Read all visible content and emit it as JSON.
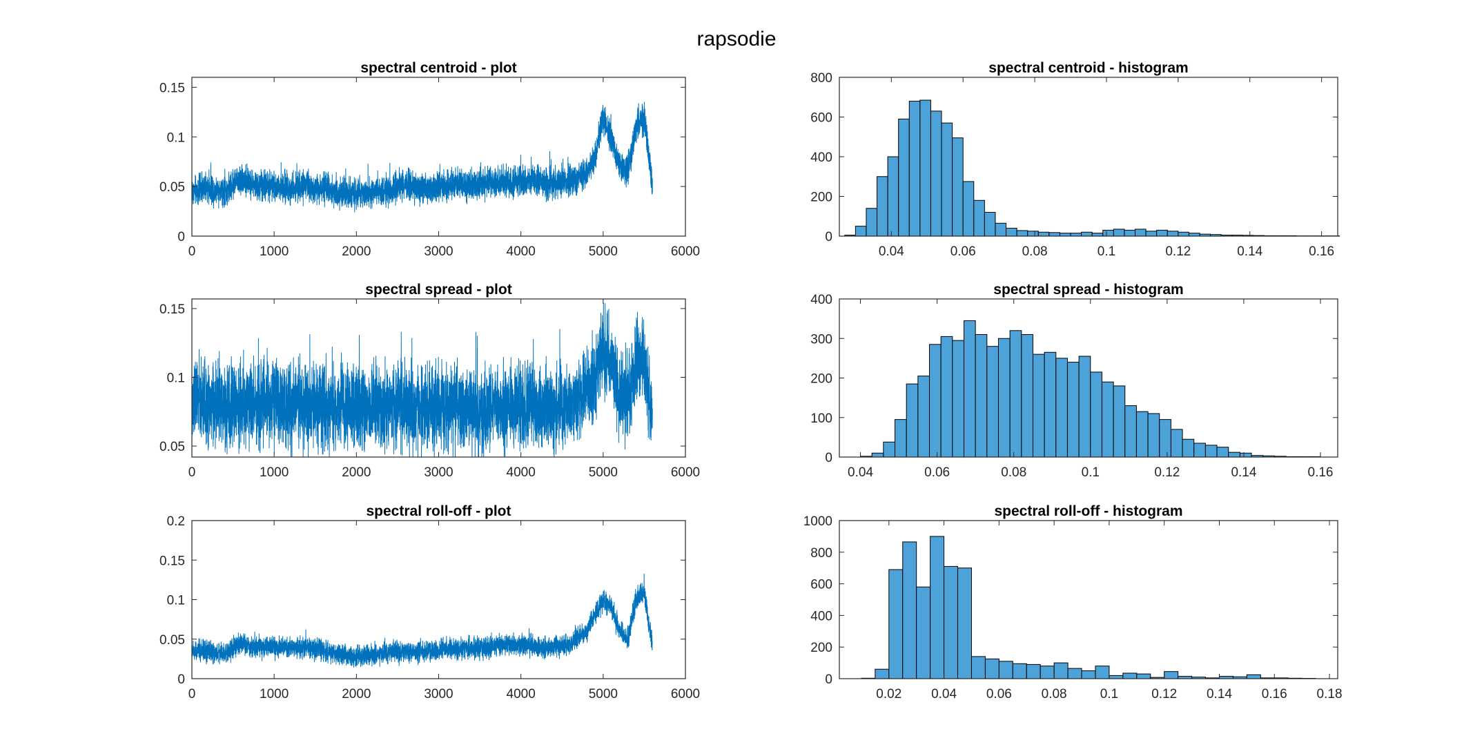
{
  "figure": {
    "title": "rapsodie"
  },
  "colors": {
    "line": "#0072BD",
    "bar_fill": "#4DA3D9",
    "bar_edge": "#000000",
    "axes": "#262626"
  },
  "chart_data": [
    {
      "type": "line",
      "title": "spectral centroid - plot",
      "xlabel": "",
      "ylabel": "",
      "xlim": [
        0,
        6000
      ],
      "ylim": [
        0,
        0.16
      ],
      "xticks": [
        0,
        1000,
        2000,
        3000,
        4000,
        5000,
        6000
      ],
      "xticklabels": [
        "0",
        "1000",
        "2000",
        "3000",
        "4000",
        "5000",
        "6000"
      ],
      "yticks": [
        0,
        0.05,
        0.1,
        0.15
      ],
      "yticklabels": [
        "0",
        "0.05",
        "0.1",
        "0.15"
      ],
      "n_points": 5600,
      "x": [
        0,
        200,
        400,
        600,
        800,
        1000,
        1200,
        1400,
        1600,
        1800,
        2000,
        2200,
        2400,
        2600,
        2800,
        3000,
        3200,
        3400,
        3600,
        3800,
        4000,
        4200,
        4400,
        4600,
        4800,
        4900,
        5000,
        5100,
        5200,
        5300,
        5400,
        5500,
        5600
      ],
      "y": [
        0.045,
        0.048,
        0.045,
        0.058,
        0.05,
        0.05,
        0.048,
        0.05,
        0.048,
        0.044,
        0.042,
        0.043,
        0.047,
        0.05,
        0.048,
        0.05,
        0.052,
        0.05,
        0.053,
        0.055,
        0.055,
        0.054,
        0.053,
        0.055,
        0.065,
        0.08,
        0.12,
        0.1,
        0.07,
        0.065,
        0.11,
        0.12,
        0.048
      ],
      "noise": 0.009
    },
    {
      "type": "line",
      "title": "spectral spread - plot",
      "xlabel": "",
      "ylabel": "",
      "xlim": [
        0,
        6000
      ],
      "ylim": [
        0.042,
        0.157
      ],
      "xticks": [
        0,
        1000,
        2000,
        3000,
        4000,
        5000,
        6000
      ],
      "xticklabels": [
        "0",
        "1000",
        "2000",
        "3000",
        "4000",
        "5000",
        "6000"
      ],
      "yticks": [
        0.05,
        0.1,
        0.15
      ],
      "yticklabels": [
        "0.05",
        "0.1",
        "0.15"
      ],
      "n_points": 5600,
      "x": [
        0,
        200,
        400,
        600,
        800,
        1000,
        1200,
        1400,
        1600,
        1800,
        2000,
        2200,
        2400,
        2600,
        2800,
        3000,
        3200,
        3400,
        3600,
        3800,
        4000,
        4200,
        4400,
        4600,
        4800,
        4900,
        5000,
        5100,
        5200,
        5300,
        5400,
        5500,
        5600
      ],
      "y": [
        0.085,
        0.08,
        0.078,
        0.08,
        0.08,
        0.082,
        0.08,
        0.078,
        0.08,
        0.078,
        0.077,
        0.078,
        0.078,
        0.078,
        0.077,
        0.078,
        0.077,
        0.076,
        0.077,
        0.077,
        0.078,
        0.078,
        0.078,
        0.08,
        0.09,
        0.1,
        0.12,
        0.11,
        0.09,
        0.085,
        0.11,
        0.115,
        0.06
      ],
      "noise": 0.018
    },
    {
      "type": "line",
      "title": "spectral roll-off - plot",
      "xlabel": "",
      "ylabel": "",
      "xlim": [
        0,
        6000
      ],
      "ylim": [
        0,
        0.2
      ],
      "xticks": [
        0,
        1000,
        2000,
        3000,
        4000,
        5000,
        6000
      ],
      "xticklabels": [
        "0",
        "1000",
        "2000",
        "3000",
        "4000",
        "5000",
        "6000"
      ],
      "yticks": [
        0,
        0.05,
        0.1,
        0.15,
        0.2
      ],
      "yticklabels": [
        "0",
        "0.05",
        "0.1",
        "0.15",
        "0.2"
      ],
      "n_points": 5600,
      "x": [
        0,
        200,
        400,
        600,
        800,
        1000,
        1200,
        1400,
        1600,
        1800,
        2000,
        2200,
        2400,
        2600,
        2800,
        3000,
        3200,
        3400,
        3600,
        3800,
        4000,
        4200,
        4400,
        4600,
        4800,
        4900,
        5000,
        5100,
        5200,
        5300,
        5400,
        5500,
        5600
      ],
      "y": [
        0.035,
        0.035,
        0.032,
        0.045,
        0.038,
        0.04,
        0.038,
        0.04,
        0.036,
        0.03,
        0.028,
        0.03,
        0.033,
        0.035,
        0.034,
        0.036,
        0.038,
        0.037,
        0.04,
        0.042,
        0.042,
        0.04,
        0.04,
        0.045,
        0.06,
        0.08,
        0.1,
        0.09,
        0.06,
        0.05,
        0.1,
        0.11,
        0.04
      ],
      "noise": 0.008
    },
    {
      "type": "bar",
      "subtype": "histogram",
      "title": "spectral centroid - histogram",
      "xlabel": "",
      "ylabel": "",
      "xlim": [
        0.0255,
        0.1645
      ],
      "ylim": [
        0,
        800
      ],
      "xticks": [
        0.04,
        0.06,
        0.08,
        0.1,
        0.12,
        0.14,
        0.16
      ],
      "xticklabels": [
        "0.04",
        "0.06",
        "0.08",
        "0.1",
        "0.12",
        "0.14",
        "0.16"
      ],
      "yticks": [
        0,
        200,
        400,
        600,
        800
      ],
      "yticklabels": [
        "0",
        "200",
        "400",
        "600",
        "800"
      ],
      "bin_start": 0.027,
      "bin_width": 0.003,
      "values": [
        5,
        50,
        140,
        300,
        400,
        590,
        680,
        685,
        630,
        570,
        495,
        275,
        180,
        120,
        65,
        40,
        28,
        25,
        20,
        18,
        15,
        15,
        20,
        15,
        30,
        35,
        30,
        35,
        25,
        30,
        25,
        20,
        15,
        10,
        8,
        5,
        5,
        4,
        3,
        2,
        2,
        2,
        1,
        1,
        1,
        1
      ]
    },
    {
      "type": "bar",
      "subtype": "histogram",
      "title": "spectral spread - histogram",
      "xlabel": "",
      "ylabel": "",
      "xlim": [
        0.0345,
        0.1645
      ],
      "ylim": [
        0,
        400
      ],
      "xticks": [
        0.04,
        0.06,
        0.08,
        0.1,
        0.12,
        0.14,
        0.16
      ],
      "xticklabels": [
        "0.04",
        "0.06",
        "0.08",
        "0.1",
        "0.12",
        "0.14",
        "0.16"
      ],
      "yticks": [
        0,
        100,
        200,
        300,
        400
      ],
      "yticklabels": [
        "0",
        "100",
        "200",
        "300",
        "400"
      ],
      "bin_start": 0.04,
      "bin_width": 0.003,
      "values": [
        2,
        10,
        38,
        95,
        185,
        205,
        285,
        305,
        295,
        345,
        310,
        280,
        300,
        320,
        310,
        260,
        265,
        250,
        240,
        255,
        215,
        190,
        180,
        130,
        115,
        110,
        95,
        70,
        45,
        35,
        30,
        25,
        12,
        10,
        4,
        3,
        2,
        1,
        1,
        1
      ]
    },
    {
      "type": "bar",
      "subtype": "histogram",
      "title": "spectral roll-off - histogram",
      "xlabel": "",
      "ylabel": "",
      "xlim": [
        0.002,
        0.183
      ],
      "ylim": [
        0,
        1000
      ],
      "xticks": [
        0.02,
        0.04,
        0.06,
        0.08,
        0.1,
        0.12,
        0.14,
        0.16,
        0.18
      ],
      "xticklabels": [
        "0.02",
        "0.04",
        "0.06",
        "0.08",
        "0.1",
        "0.12",
        "0.14",
        "0.16",
        "0.18"
      ],
      "yticks": [
        0,
        200,
        400,
        600,
        800,
        1000
      ],
      "yticklabels": [
        "0",
        "200",
        "400",
        "600",
        "800",
        "1000"
      ],
      "bin_start": 0.01,
      "bin_width": 0.005,
      "values": [
        3,
        60,
        690,
        865,
        580,
        900,
        710,
        700,
        140,
        125,
        110,
        95,
        90,
        80,
        100,
        65,
        50,
        80,
        20,
        35,
        30,
        8,
        45,
        15,
        10,
        5,
        15,
        12,
        25,
        5,
        5,
        3,
        2
      ]
    }
  ]
}
